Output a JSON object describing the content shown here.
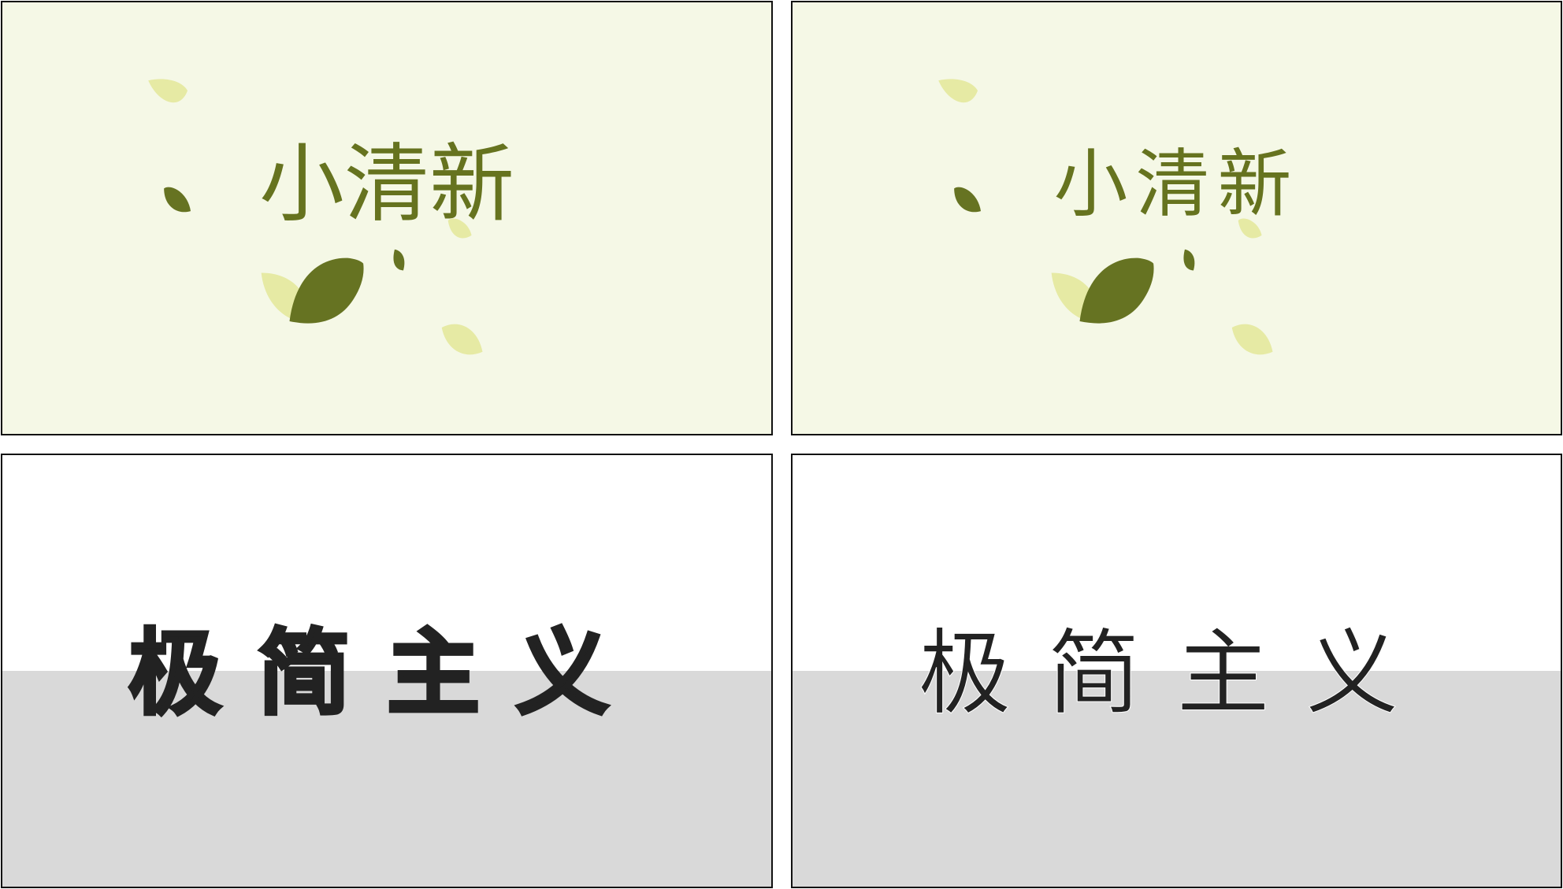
{
  "panels": [
    {
      "id": "fresh-standard",
      "title": "小清新",
      "colors": {
        "background": "#f5f8e6",
        "text": "#66731f",
        "leaf_dark": "#667322",
        "leaf_light": "#e6eaa4"
      }
    },
    {
      "id": "fresh-rounded",
      "title": "小清新",
      "colors": {
        "background": "#f5f8e6",
        "text": "#66731f",
        "leaf_dark": "#667322",
        "leaf_light": "#e6eaa4"
      }
    },
    {
      "id": "minimal-bold",
      "title": "极简主义",
      "colors": {
        "top": "#ffffff",
        "bottom": "#d9d9d9",
        "text": "#222222"
      }
    },
    {
      "id": "minimal-thin",
      "title": "极简主义",
      "colors": {
        "top": "#ffffff",
        "bottom": "#d9d9d9",
        "text": "#222222"
      }
    }
  ]
}
